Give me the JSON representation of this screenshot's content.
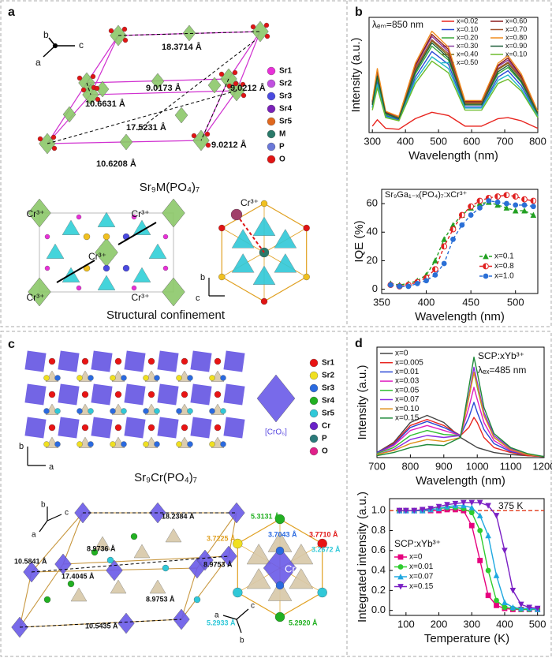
{
  "chart_data": [
    {
      "type": "line",
      "panel": "b",
      "x_label": "Wavelength (nm)",
      "y_label": "Intensity (a.u.)",
      "annotations": [
        "λₑₘ=850 nm"
      ],
      "x": [
        300,
        315,
        340,
        380,
        430,
        480,
        530,
        580,
        630,
        680,
        710,
        750,
        800
      ],
      "xlim": [
        290,
        800
      ],
      "xticks": [
        300,
        400,
        500,
        600,
        700,
        800
      ],
      "ylim": [
        0,
        1.08
      ],
      "legend": "upper right",
      "series": [
        {
          "name": "x=0.02",
          "color": "#e8251f",
          "values": [
            0.06,
            0.12,
            0.04,
            0.03,
            0.13,
            0.19,
            0.16,
            0.06,
            0.06,
            0.13,
            0.14,
            0.11,
            0.04
          ]
        },
        {
          "name": "x=0.10",
          "color": "#2b48d6",
          "values": [
            0.24,
            0.48,
            0.16,
            0.12,
            0.52,
            0.76,
            0.64,
            0.24,
            0.24,
            0.52,
            0.58,
            0.44,
            0.16
          ]
        },
        {
          "name": "x=0.20",
          "color": "#39a839",
          "values": [
            0.26,
            0.51,
            0.17,
            0.13,
            0.55,
            0.81,
            0.68,
            0.26,
            0.26,
            0.55,
            0.61,
            0.47,
            0.17
          ]
        },
        {
          "name": "x=0.30",
          "color": "#8a3fa0",
          "values": [
            0.29,
            0.57,
            0.19,
            0.14,
            0.62,
            0.9,
            0.76,
            0.29,
            0.29,
            0.62,
            0.68,
            0.52,
            0.19
          ]
        },
        {
          "name": "x=0.40",
          "color": "#7a6a1a",
          "values": [
            0.27,
            0.54,
            0.18,
            0.14,
            0.59,
            0.86,
            0.72,
            0.27,
            0.27,
            0.59,
            0.65,
            0.5,
            0.18
          ]
        },
        {
          "name": "x=0.50",
          "color": "#21b5c8",
          "values": [
            0.23,
            0.45,
            0.15,
            0.11,
            0.49,
            0.71,
            0.6,
            0.23,
            0.23,
            0.49,
            0.54,
            0.41,
            0.15
          ]
        },
        {
          "name": "x=0.60",
          "color": "#8b1a1a",
          "values": [
            0.29,
            0.58,
            0.19,
            0.15,
            0.63,
            0.92,
            0.78,
            0.29,
            0.29,
            0.63,
            0.7,
            0.53,
            0.19
          ]
        },
        {
          "name": "x=0.70",
          "color": "#a0522d",
          "values": [
            0.28,
            0.55,
            0.18,
            0.14,
            0.6,
            0.87,
            0.74,
            0.28,
            0.28,
            0.6,
            0.66,
            0.51,
            0.18
          ]
        },
        {
          "name": "x=0.80",
          "color": "#f08c1e",
          "values": [
            0.3,
            0.6,
            0.2,
            0.15,
            0.65,
            0.95,
            0.8,
            0.3,
            0.3,
            0.65,
            0.72,
            0.55,
            0.2
          ]
        },
        {
          "name": "x=0.90",
          "color": "#1d5e3a",
          "values": [
            0.26,
            0.53,
            0.18,
            0.13,
            0.57,
            0.84,
            0.7,
            0.26,
            0.26,
            0.57,
            0.63,
            0.48,
            0.18
          ]
        },
        {
          "name": "x=0.10",
          "color": "#6cbb2a",
          "values": [
            0.21,
            0.42,
            0.14,
            0.11,
            0.46,
            0.67,
            0.56,
            0.21,
            0.21,
            0.46,
            0.5,
            0.39,
            0.14
          ]
        }
      ]
    },
    {
      "type": "line",
      "title": "Sr₉Ga₁₋ₓ(PO₄)₇:xCr³⁺",
      "x_label": "Wavelength (nm)",
      "y_label": "IQE (%)",
      "x": [
        360,
        370,
        380,
        390,
        400,
        410,
        420,
        430,
        440,
        450,
        460,
        470,
        480,
        490,
        500,
        510,
        520
      ],
      "xlim": [
        350,
        525
      ],
      "xticks": [
        350,
        400,
        450,
        500
      ],
      "ylim": [
        -3,
        70
      ],
      "yticks": [
        0,
        20,
        40,
        60
      ],
      "legend": "lower right",
      "series": [
        {
          "name": "x=0.1",
          "color": "#22a022",
          "marker": "triangle",
          "line_style": "dashed",
          "values": [
            4,
            3,
            4,
            6,
            10,
            20,
            35,
            45,
            52,
            57,
            60,
            61,
            59,
            57,
            55,
            55,
            52
          ]
        },
        {
          "name": "x=0.8",
          "color": "#e02020",
          "marker": "half-circle",
          "line_style": "dashed",
          "values": [
            3,
            2,
            3,
            5,
            8,
            14,
            30,
            42,
            52,
            58,
            62,
            64,
            65,
            66,
            65,
            63,
            62
          ]
        },
        {
          "name": "x=1.0",
          "color": "#2a6fd6",
          "marker": "circle",
          "line_style": "dashed",
          "values": [
            3,
            2,
            2,
            4,
            6,
            10,
            18,
            35,
            45,
            52,
            57,
            62,
            61,
            60,
            59,
            59,
            58
          ]
        }
      ]
    },
    {
      "type": "line",
      "panel": "d",
      "x_label": "Wavelength (nm)",
      "y_label": "Intensity (a.u.)",
      "annotations": [
        "SCP:xYb³⁺",
        "λₑₓ=485 nm"
      ],
      "x": [
        700,
        750,
        800,
        850,
        900,
        950,
        975,
        990,
        1000,
        1020,
        1050,
        1100,
        1150,
        1200
      ],
      "xlim": [
        700,
        1200
      ],
      "xticks": [
        700,
        800,
        900,
        1000,
        1100,
        1200
      ],
      "ylim": [
        0,
        1.1
      ],
      "legend": "upper left",
      "series": [
        {
          "name": "x=0",
          "color": "#444444",
          "values": [
            0.05,
            0.15,
            0.35,
            0.42,
            0.35,
            0.2,
            0.15,
            0.12,
            0.1,
            0.08,
            0.05,
            0.03,
            0.02,
            0.01
          ]
        },
        {
          "name": "x=0.005",
          "color": "#e8251f",
          "values": [
            0.05,
            0.14,
            0.32,
            0.38,
            0.32,
            0.22,
            0.3,
            0.4,
            0.35,
            0.2,
            0.1,
            0.05,
            0.02,
            0.01
          ]
        },
        {
          "name": "x=0.01",
          "color": "#2b48d6",
          "values": [
            0.05,
            0.13,
            0.3,
            0.36,
            0.3,
            0.22,
            0.4,
            0.55,
            0.45,
            0.28,
            0.14,
            0.06,
            0.03,
            0.01
          ]
        },
        {
          "name": "x=0.03",
          "color": "#e01fc0",
          "values": [
            0.04,
            0.12,
            0.27,
            0.32,
            0.27,
            0.22,
            0.5,
            0.7,
            0.58,
            0.35,
            0.17,
            0.07,
            0.03,
            0.01
          ]
        },
        {
          "name": "x=0.05",
          "color": "#2fbf2f",
          "values": [
            0.04,
            0.1,
            0.22,
            0.27,
            0.23,
            0.22,
            0.6,
            0.85,
            0.7,
            0.42,
            0.2,
            0.08,
            0.03,
            0.01
          ]
        },
        {
          "name": "x=0.07",
          "color": "#8a2be2",
          "values": [
            0.03,
            0.08,
            0.18,
            0.22,
            0.2,
            0.22,
            0.62,
            0.9,
            0.75,
            0.45,
            0.22,
            0.09,
            0.03,
            0.01
          ]
        },
        {
          "name": "x=0.10",
          "color": "#e0901a",
          "values": [
            0.03,
            0.07,
            0.14,
            0.18,
            0.16,
            0.2,
            0.6,
            0.85,
            0.72,
            0.42,
            0.2,
            0.08,
            0.03,
            0.01
          ]
        },
        {
          "name": "x=0.15",
          "color": "#1f8a3a",
          "values": [
            0.02,
            0.05,
            0.1,
            0.13,
            0.12,
            0.2,
            0.7,
            1.0,
            0.85,
            0.5,
            0.24,
            0.1,
            0.04,
            0.01
          ]
        }
      ]
    },
    {
      "type": "line",
      "x_label": "Temperature (K)",
      "y_label": "Integrated intensity (a.u.)",
      "annotations": [
        "375 K"
      ],
      "legend_title": "SCP:xYb³⁺",
      "hline": 1.0,
      "hline_color": "#e03a1a",
      "x": [
        80,
        100,
        125,
        150,
        175,
        200,
        225,
        250,
        275,
        300,
        325,
        350,
        375,
        400,
        425,
        450,
        475,
        500
      ],
      "xlim": [
        50,
        520
      ],
      "xticks": [
        100,
        200,
        300,
        400,
        500
      ],
      "ylim": [
        -0.05,
        1.12
      ],
      "yticks": [
        {
          "value": 0,
          "label": "0.0"
        },
        0.2,
        0.4,
        0.6,
        0.8,
        {
          "value": 1,
          "label": "1.0"
        }
      ],
      "legend": "lower left",
      "series": [
        {
          "name": "x=0",
          "color": "#e6007e",
          "marker": "square",
          "values": [
            1,
            1,
            1,
            1,
            1,
            1,
            1.01,
            1.01,
            1.0,
            0.85,
            0.5,
            0.15,
            0.05,
            0.02,
            0.01,
            0.01,
            0.01,
            0.01
          ]
        },
        {
          "name": "x=0.01",
          "color": "#2ecc2e",
          "marker": "circle",
          "values": [
            1,
            1,
            1,
            1,
            1.01,
            1.02,
            1.03,
            1.03,
            1.02,
            0.98,
            0.8,
            0.4,
            0.1,
            0.03,
            0.02,
            0.01,
            0.01,
            0.01
          ]
        },
        {
          "name": "x=0.07",
          "color": "#1fa8e0",
          "marker": "triangle",
          "values": [
            1,
            1,
            1,
            1,
            1.01,
            1.02,
            1.04,
            1.05,
            1.05,
            1.03,
            0.95,
            0.75,
            0.35,
            0.08,
            0.03,
            0.02,
            0.02,
            0.01
          ]
        },
        {
          "name": "x=0.15",
          "color": "#7a1fc4",
          "marker": "triangle-down",
          "values": [
            1,
            1,
            1,
            1.01,
            1.02,
            1.04,
            1.06,
            1.07,
            1.08,
            1.08,
            1.08,
            1.05,
            0.95,
            0.6,
            0.2,
            0.06,
            0.03,
            0.02
          ]
        }
      ]
    }
  ],
  "diagrams": {
    "panel_a": {
      "label": "a",
      "axes": [
        "b",
        "c",
        "a"
      ],
      "distances": [
        "18.3714 Å",
        "9.0173 Å",
        "10.6631 Å",
        "9.0212 Å",
        "17.5231 Å",
        "9.0212 Å",
        "10.6208 Å"
      ],
      "legend": [
        "Sr1",
        "Sr2",
        "Sr3",
        "Sr4",
        "Sr5",
        "M",
        "P",
        "O"
      ],
      "legend_colors": [
        "#e830d8",
        "#c050e0",
        "#4a4ae0",
        "#7a22b8",
        "#e0681e",
        "#2a7a6a",
        "#6a78d8",
        "#e01414"
      ],
      "formula": "Sr₉M(PO₄)₇",
      "cr_labels": [
        "Cr³⁺",
        "Cr³⁺",
        "Cr³⁺",
        "Cr³⁺",
        "Cr³⁺"
      ],
      "cr_label_right": "Cr³⁺",
      "axes2": [
        "b",
        "c"
      ],
      "caption": "Structural confinement"
    },
    "panel_c": {
      "label": "c",
      "axes": [
        "b",
        "a"
      ],
      "legend": [
        "Sr1",
        "Sr2",
        "Sr3",
        "Sr4",
        "Sr5",
        "Cr",
        "P",
        "O"
      ],
      "legend_colors": [
        "#e81414",
        "#f0e020",
        "#2a6ae0",
        "#22b022",
        "#30c8d8",
        "#6a22c8",
        "#2a7a7a",
        "#e0208a"
      ],
      "polyhedron": "[CrO₆]",
      "formula": "Sr₉Cr(PO₄)₇",
      "axes3": [
        "b",
        "c",
        "a"
      ],
      "distances": [
        "18.2384 Å",
        "10.5841 Å",
        "8.9736 Å",
        "17.4045 Å",
        "8.9753 Å",
        "8.9753 Å",
        "10.5435 Å"
      ],
      "local_distances": [
        "5.3131 Å",
        "3.7043 Å",
        "3.7710 Å",
        "3.7225 Å",
        "3.2672 Å",
        "5.2933 Å",
        "5.2920 Å"
      ],
      "cr_label": "Cr³⁺",
      "axes4": [
        "c",
        "a",
        "b"
      ]
    }
  }
}
